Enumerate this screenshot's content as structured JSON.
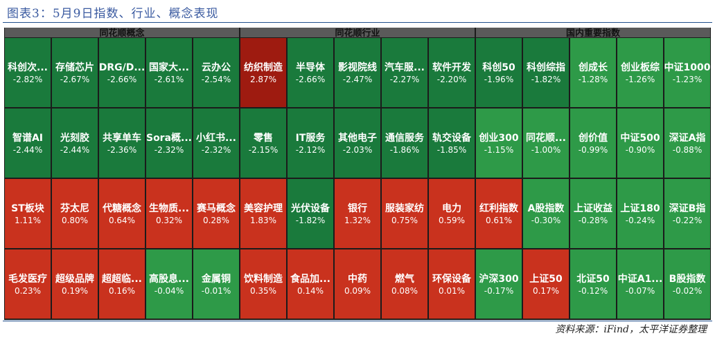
{
  "title": "图表3：5月9日指数、行业、概念表现",
  "source": "资料来源：iFind，太平洋证券整理",
  "colors": {
    "up": "#c9321e",
    "up_strong": "#9e1b10",
    "down": "#1a7a3c",
    "down_light": "#2e9a48",
    "header": "#5a5a5a"
  },
  "chart_data": {
    "type": "heatmap",
    "groups": [
      {
        "title": "同花顺概念",
        "cells": [
          {
            "name": "科创次...",
            "value": "-2.82%"
          },
          {
            "name": "存储芯片",
            "value": "-2.67%"
          },
          {
            "name": "DRG/D...",
            "value": "-2.66%"
          },
          {
            "name": "国家大...",
            "value": "-2.61%"
          },
          {
            "name": "云办公",
            "value": "-2.54%"
          },
          {
            "name": "智谱AI",
            "value": "-2.44%"
          },
          {
            "name": "光刻胶",
            "value": "-2.44%"
          },
          {
            "name": "共享单车",
            "value": "-2.36%"
          },
          {
            "name": "Sora概...",
            "value": "-2.32%"
          },
          {
            "name": "小红书...",
            "value": "-2.32%"
          },
          {
            "name": "ST板块",
            "value": "1.11%"
          },
          {
            "name": "芬太尼",
            "value": "0.80%"
          },
          {
            "name": "代糖概念",
            "value": "0.64%"
          },
          {
            "name": "生物质...",
            "value": "0.32%"
          },
          {
            "name": "赛马概念",
            "value": "0.28%"
          },
          {
            "name": "毛发医疗",
            "value": "0.23%"
          },
          {
            "name": "超级品牌",
            "value": "0.19%"
          },
          {
            "name": "超超临...",
            "value": "0.16%"
          },
          {
            "name": "高股息...",
            "value": "-0.04%"
          },
          {
            "name": "金属铜",
            "value": "-0.01%"
          }
        ]
      },
      {
        "title": "同花顺行业",
        "cells": [
          {
            "name": "纺织制造",
            "value": "2.87%"
          },
          {
            "name": "半导体",
            "value": "-2.66%"
          },
          {
            "name": "影视院线",
            "value": "-2.47%"
          },
          {
            "name": "汽车服...",
            "value": "-2.27%"
          },
          {
            "name": "软件开发",
            "value": "-2.20%"
          },
          {
            "name": "零售",
            "value": "-2.15%"
          },
          {
            "name": "IT服务",
            "value": "-2.12%"
          },
          {
            "name": "其他电子",
            "value": "-2.03%"
          },
          {
            "name": "通信服务",
            "value": "-1.86%"
          },
          {
            "name": "轨交设备",
            "value": "-1.85%"
          },
          {
            "name": "美容护理",
            "value": "1.83%"
          },
          {
            "name": "光伏设备",
            "value": "-1.82%"
          },
          {
            "name": "银行",
            "value": "1.32%"
          },
          {
            "name": "服装家纺",
            "value": "0.75%"
          },
          {
            "name": "电力",
            "value": "0.59%"
          },
          {
            "name": "饮料制造",
            "value": "0.35%"
          },
          {
            "name": "食品加...",
            "value": "0.14%"
          },
          {
            "name": "中药",
            "value": "0.09%"
          },
          {
            "name": "燃气",
            "value": "0.08%"
          },
          {
            "name": "环保设备",
            "value": "0.01%"
          }
        ]
      },
      {
        "title": "国内重要指数",
        "cells": [
          {
            "name": "科创50",
            "value": "-1.96%"
          },
          {
            "name": "科创综指",
            "value": "-1.82%"
          },
          {
            "name": "创成长",
            "value": "-1.28%"
          },
          {
            "name": "创业板综",
            "value": "-1.26%"
          },
          {
            "name": "中证1000",
            "value": "-1.23%"
          },
          {
            "name": "创业300",
            "value": "-1.15%"
          },
          {
            "name": "同花顺...",
            "value": "-1.00%"
          },
          {
            "name": "创价值",
            "value": "-0.99%"
          },
          {
            "name": "中证500",
            "value": "-0.90%"
          },
          {
            "name": "深证A指",
            "value": "-0.88%"
          },
          {
            "name": "红利指数",
            "value": "0.61%"
          },
          {
            "name": "A股指数",
            "value": "-0.30%"
          },
          {
            "name": "上证收益",
            "value": "-0.28%"
          },
          {
            "name": "上证180",
            "value": "-0.24%"
          },
          {
            "name": "深证B指",
            "value": "-0.22%"
          },
          {
            "name": "沪深300",
            "value": "-0.17%"
          },
          {
            "name": "上证50",
            "value": "0.17%"
          },
          {
            "name": "北证50",
            "value": "-0.12%"
          },
          {
            "name": "中证A1...",
            "value": "-0.07%"
          },
          {
            "name": "B股指数",
            "value": "-0.02%"
          }
        ]
      }
    ]
  }
}
